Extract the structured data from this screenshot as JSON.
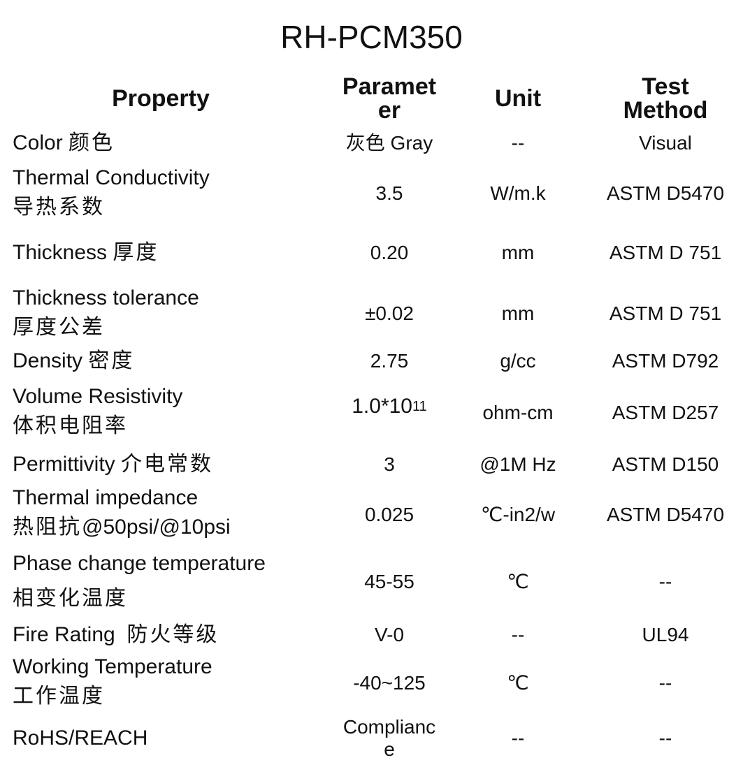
{
  "title": "RH-PCM350",
  "headers": {
    "property": "Property",
    "parameter": "Paramet\ner",
    "unit": "Unit",
    "test_method": "Test\nMethod"
  },
  "rows": [
    {
      "en": "Color",
      "zh": "颜色",
      "parameter": "灰色 Gray",
      "unit": "--",
      "test": "Visual"
    },
    {
      "en": "Thermal Conductivity",
      "zh": "导热系数",
      "parameter": "3.5",
      "unit": "W/m.k",
      "test": "ASTM D5470"
    },
    {
      "en": "Thickness",
      "zh": "厚度",
      "parameter": "0.20",
      "unit": "mm",
      "test": "ASTM D 751"
    },
    {
      "en": "Thickness tolerance",
      "zh": "厚度公差",
      "parameter": "±0.02",
      "unit": "mm",
      "test": "ASTM D 751"
    },
    {
      "en": "Density",
      "zh": "密度",
      "parameter": "2.75",
      "unit": "g/cc",
      "test": "ASTM D792"
    },
    {
      "en": "Volume Resistivity",
      "zh": "体积电阻率",
      "parameter_base": "1.0*10",
      "parameter_exp": "11",
      "unit": "ohm-cm",
      "test": "ASTM D257"
    },
    {
      "en": "Permittivity",
      "zh": "介电常数",
      "parameter": "3",
      "unit": "@1M Hz",
      "test": "ASTM D150"
    },
    {
      "en": "Thermal impedance",
      "zh": "热阻抗",
      "zh_suffix": "@50psi/@10psi",
      "parameter": "0.025",
      "unit": "℃-in2/w",
      "test": "ASTM D5470"
    },
    {
      "en": "Phase change temperature",
      "zh": "相变化温度",
      "parameter": "45-55",
      "unit": "℃",
      "test": "--"
    },
    {
      "en": "Fire Rating",
      "zh": "防火等级",
      "parameter": "V-0",
      "unit": "--",
      "test": "UL94"
    },
    {
      "en": "Working Temperature",
      "zh": "工作温度",
      "parameter": "-40~125",
      "unit": "℃",
      "test": "--"
    },
    {
      "en": "RoHS/REACH",
      "parameter": "Complianc\ne",
      "unit": "--",
      "test": "--"
    }
  ]
}
